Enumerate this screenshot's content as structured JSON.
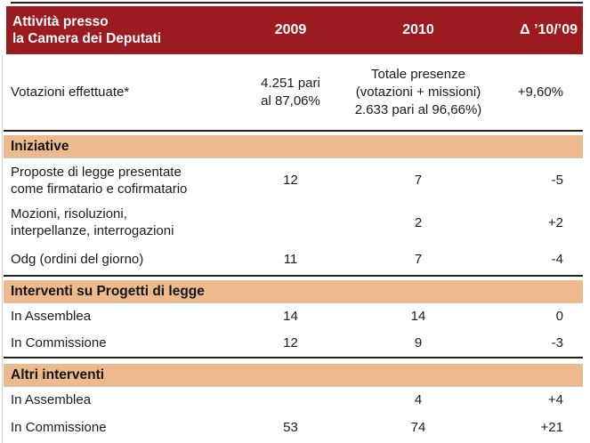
{
  "header": {
    "title_line1": "Attività presso",
    "title_line2": "la Camera dei Deputati",
    "col_2009": "2009",
    "col_2010": "2010",
    "col_delta": "Δ ’10/’09"
  },
  "votazioni": {
    "label": "Votazioni effettuate*",
    "v2009_lines": [
      "4.251 pari",
      "al 87,06%"
    ],
    "v2010_lines": [
      "Totale presenze",
      "(votazioni + missioni)",
      "2.633 pari al 96,66%)"
    ],
    "delta": "+9,60%"
  },
  "sections": [
    {
      "title": "Iniziative",
      "rows": [
        {
          "label": [
            "Proposte di legge presentate",
            "come firmatario e cofirmatario"
          ],
          "v2009": "12",
          "v2010": "7",
          "delta": "-5"
        },
        {
          "label": [
            "Mozioni, risoluzioni,",
            "interpellanze, interrogazioni"
          ],
          "v2009": "",
          "v2010": "2",
          "delta": "+2"
        },
        {
          "label": [
            "Odg (ordini del giorno)",
            ""
          ],
          "v2009": "11",
          "v2010": "7",
          "delta": "-4"
        }
      ]
    },
    {
      "title": "Interventi su Progetti di legge",
      "rows": [
        {
          "label": [
            "In Assemblea",
            ""
          ],
          "v2009": "14",
          "v2010": "14",
          "delta": "0"
        },
        {
          "label": [
            "In Commissione",
            ""
          ],
          "v2009": "12",
          "v2010": "9",
          "delta": "-3"
        }
      ]
    },
    {
      "title": "Altri interventi",
      "rows": [
        {
          "label": [
            "In Assemblea",
            ""
          ],
          "v2009": "",
          "v2010": "4",
          "delta": "+4"
        },
        {
          "label": [
            "In Commissione",
            ""
          ],
          "v2009": "53",
          "v2010": "74",
          "delta": "+21"
        }
      ]
    }
  ],
  "colors": {
    "header_bg": "#9c1b21",
    "header_text": "#ffffff",
    "section_bg": "#ecba8d",
    "rule_dark": "#27201d",
    "hairline": "#cdc9c5",
    "body_text": "#1b1b1b"
  }
}
